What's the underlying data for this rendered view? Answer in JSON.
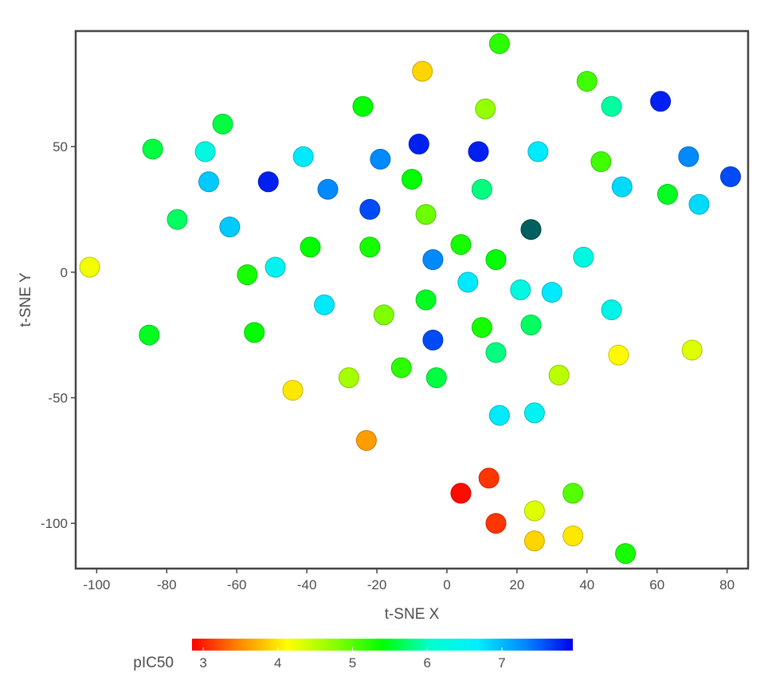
{
  "chart_data": {
    "type": "scatter",
    "xlabel": "t-SNE X",
    "ylabel": "t-SNE Y",
    "xlim": [
      -106,
      86
    ],
    "ylim": [
      -118,
      96
    ],
    "xticks": [
      -100,
      -80,
      -60,
      -40,
      -20,
      0,
      20,
      40,
      60,
      80
    ],
    "yticks": [
      -100,
      -50,
      0,
      50
    ],
    "grid": false,
    "colorbar": {
      "label": "pIC50",
      "min": 2.85,
      "max": 7.95,
      "ticks": [
        3,
        4,
        5,
        6,
        7
      ],
      "colormap": [
        "#ff0000",
        "#ff8800",
        "#ffff00",
        "#88ff00",
        "#00ff00",
        "#00ffcc",
        "#00eeff",
        "#0088ff",
        "#0000ee"
      ]
    },
    "points": [
      {
        "x": -102,
        "y": 2,
        "pIC50": 4.2
      },
      {
        "x": -84,
        "y": 49,
        "pIC50": 5.6
      },
      {
        "x": -85,
        "y": -25,
        "pIC50": 5.5
      },
      {
        "x": -77,
        "y": 21,
        "pIC50": 5.7
      },
      {
        "x": -69,
        "y": 48,
        "pIC50": 6.3
      },
      {
        "x": -68,
        "y": 36,
        "pIC50": 6.9
      },
      {
        "x": -64,
        "y": 59,
        "pIC50": 5.6
      },
      {
        "x": -62,
        "y": 18,
        "pIC50": 6.9
      },
      {
        "x": -57,
        "y": -1,
        "pIC50": 5.3
      },
      {
        "x": -55,
        "y": -24,
        "pIC50": 5.4
      },
      {
        "x": -51,
        "y": 36,
        "pIC50": 7.8
      },
      {
        "x": -49,
        "y": 2,
        "pIC50": 6.5
      },
      {
        "x": -44,
        "y": -47,
        "pIC50": 4.0
      },
      {
        "x": -41,
        "y": 46,
        "pIC50": 6.7
      },
      {
        "x": -39,
        "y": 10,
        "pIC50": 5.4
      },
      {
        "x": -35,
        "y": -13,
        "pIC50": 6.7
      },
      {
        "x": -34,
        "y": 33,
        "pIC50": 7.3
      },
      {
        "x": -28,
        "y": -42,
        "pIC50": 4.6
      },
      {
        "x": -24,
        "y": 66,
        "pIC50": 5.4
      },
      {
        "x": -23,
        "y": -67,
        "pIC50": 3.6
      },
      {
        "x": -22,
        "y": 25,
        "pIC50": 7.6
      },
      {
        "x": -22,
        "y": 10,
        "pIC50": 5.3
      },
      {
        "x": -19,
        "y": 45,
        "pIC50": 7.3
      },
      {
        "x": -18,
        "y": -17,
        "pIC50": 4.8
      },
      {
        "x": -13,
        "y": -38,
        "pIC50": 5.2
      },
      {
        "x": -10,
        "y": 37,
        "pIC50": 5.4
      },
      {
        "x": -8,
        "y": 51,
        "pIC50": 7.8
      },
      {
        "x": -7,
        "y": 80,
        "pIC50": 3.9
      },
      {
        "x": -6,
        "y": 23,
        "pIC50": 4.9
      },
      {
        "x": -6,
        "y": -11,
        "pIC50": 5.5
      },
      {
        "x": -4,
        "y": 5,
        "pIC50": 7.3
      },
      {
        "x": -4,
        "y": -27,
        "pIC50": 7.6
      },
      {
        "x": -3,
        "y": -42,
        "pIC50": 5.6
      },
      {
        "x": 4,
        "y": -88,
        "pIC50": 2.9
      },
      {
        "x": 4,
        "y": 11,
        "pIC50": 5.3
      },
      {
        "x": 6,
        "y": -4,
        "pIC50": 6.7
      },
      {
        "x": 9,
        "y": 48,
        "pIC50": 7.8
      },
      {
        "x": 10,
        "y": 33,
        "pIC50": 5.8
      },
      {
        "x": 10,
        "y": -22,
        "pIC50": 5.3
      },
      {
        "x": 11,
        "y": 65,
        "pIC50": 4.7
      },
      {
        "x": 12,
        "y": -82,
        "pIC50": 3.1
      },
      {
        "x": 14,
        "y": 5,
        "pIC50": 5.4
      },
      {
        "x": 14,
        "y": -100,
        "pIC50": 3.1
      },
      {
        "x": 14,
        "y": -32,
        "pIC50": 5.8
      },
      {
        "x": 15,
        "y": 91,
        "pIC50": 5.2
      },
      {
        "x": 15,
        "y": -57,
        "pIC50": 6.7
      },
      {
        "x": 21,
        "y": -7,
        "pIC50": 6.3
      },
      {
        "x": 24,
        "y": -21,
        "pIC50": 5.7
      },
      {
        "x": 24,
        "y": 17,
        "pIC50": 8.5
      },
      {
        "x": 25,
        "y": -56,
        "pIC50": 6.5
      },
      {
        "x": 25,
        "y": -95,
        "pIC50": 4.3
      },
      {
        "x": 25,
        "y": -107,
        "pIC50": 3.9
      },
      {
        "x": 26,
        "y": 48,
        "pIC50": 6.7
      },
      {
        "x": 30,
        "y": -8,
        "pIC50": 6.7
      },
      {
        "x": 32,
        "y": -41,
        "pIC50": 4.5
      },
      {
        "x": 36,
        "y": -88,
        "pIC50": 5.0
      },
      {
        "x": 36,
        "y": -105,
        "pIC50": 4.0
      },
      {
        "x": 39,
        "y": 6,
        "pIC50": 6.3
      },
      {
        "x": 40,
        "y": 76,
        "pIC50": 5.1
      },
      {
        "x": 44,
        "y": 44,
        "pIC50": 5.1
      },
      {
        "x": 47,
        "y": 66,
        "pIC50": 5.9
      },
      {
        "x": 47,
        "y": -15,
        "pIC50": 6.4
      },
      {
        "x": 49,
        "y": -33,
        "pIC50": 4.1
      },
      {
        "x": 50,
        "y": 34,
        "pIC50": 6.8
      },
      {
        "x": 51,
        "y": -112,
        "pIC50": 5.3
      },
      {
        "x": 61,
        "y": 68,
        "pIC50": 7.8
      },
      {
        "x": 63,
        "y": 31,
        "pIC50": 5.5
      },
      {
        "x": 69,
        "y": 46,
        "pIC50": 7.3
      },
      {
        "x": 70,
        "y": -31,
        "pIC50": 4.3
      },
      {
        "x": 72,
        "y": 27,
        "pIC50": 6.8
      },
      {
        "x": 81,
        "y": 38,
        "pIC50": 7.6
      }
    ]
  }
}
